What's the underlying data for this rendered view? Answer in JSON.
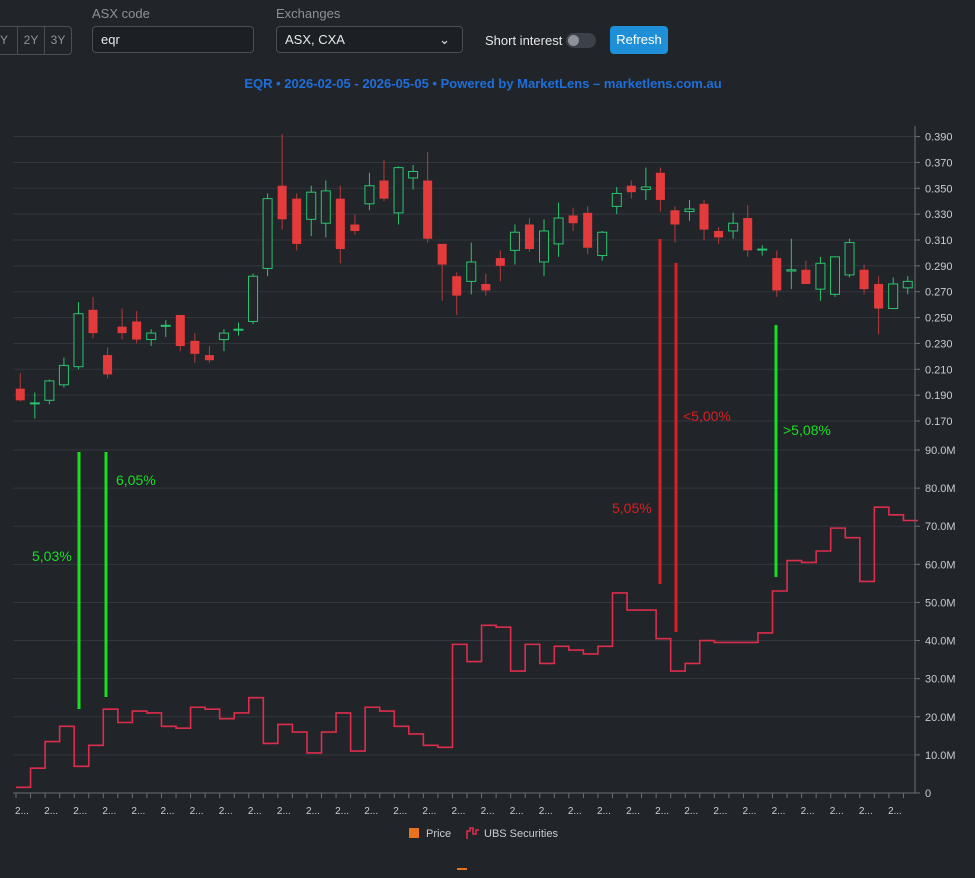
{
  "toolbar": {
    "range_buttons": [
      "Y",
      "2Y",
      "3Y"
    ],
    "asx_code_label": "ASX code",
    "asx_code_value": "eqr",
    "exchanges_label": "Exchanges",
    "exchanges_value": "ASX, CXA",
    "short_interest_label": "Short interest",
    "short_interest_on": false,
    "refresh_label": "Refresh",
    "accent": "#1f8fd8"
  },
  "chart_data": {
    "type": "candlestick+line",
    "title": "EQR • 2026-02-05 - 2026-05-05 • Powered by MarketLens – marketlens.com.au",
    "legend_position": "bottom",
    "legend": [
      {
        "name": "Price",
        "color": "#e8731c"
      },
      {
        "name": "UBS Securities",
        "color": "#dc2d4b"
      }
    ],
    "price_axis": {
      "ticks": [
        "0.390",
        "0.370",
        "0.350",
        "0.330",
        "0.310",
        "0.290",
        "0.270",
        "0.250",
        "0.230",
        "0.210",
        "0.190",
        "0.170"
      ],
      "ylim": [
        0.17,
        0.392
      ]
    },
    "volume_axis": {
      "ticks": [
        "90.0M",
        "80.0M",
        "70.0M",
        "60.0M",
        "50.0M",
        "40.0M",
        "30.0M",
        "20.0M",
        "10.0M",
        "0"
      ],
      "ylim": [
        0,
        90000000
      ]
    },
    "x_tick_label": "2...",
    "candles": [
      {
        "o": 0.195,
        "h": 0.207,
        "l": 0.185,
        "c": 0.186
      },
      {
        "o": 0.184,
        "h": 0.192,
        "l": 0.172,
        "c": 0.184
      },
      {
        "o": 0.186,
        "h": 0.202,
        "l": 0.183,
        "c": 0.201
      },
      {
        "o": 0.198,
        "h": 0.219,
        "l": 0.196,
        "c": 0.213
      },
      {
        "o": 0.212,
        "h": 0.262,
        "l": 0.21,
        "c": 0.253
      },
      {
        "o": 0.256,
        "h": 0.266,
        "l": 0.234,
        "c": 0.238
      },
      {
        "o": 0.221,
        "h": 0.227,
        "l": 0.203,
        "c": 0.206
      },
      {
        "o": 0.243,
        "h": 0.257,
        "l": 0.233,
        "c": 0.238
      },
      {
        "o": 0.247,
        "h": 0.255,
        "l": 0.23,
        "c": 0.233
      },
      {
        "o": 0.233,
        "h": 0.241,
        "l": 0.228,
        "c": 0.238
      },
      {
        "o": 0.244,
        "h": 0.248,
        "l": 0.235,
        "c": 0.244
      },
      {
        "o": 0.252,
        "h": 0.252,
        "l": 0.224,
        "c": 0.228
      },
      {
        "o": 0.232,
        "h": 0.238,
        "l": 0.215,
        "c": 0.222
      },
      {
        "o": 0.221,
        "h": 0.228,
        "l": 0.215,
        "c": 0.217
      },
      {
        "o": 0.233,
        "h": 0.241,
        "l": 0.224,
        "c": 0.238
      },
      {
        "o": 0.241,
        "h": 0.246,
        "l": 0.236,
        "c": 0.241
      },
      {
        "o": 0.247,
        "h": 0.284,
        "l": 0.245,
        "c": 0.282
      },
      {
        "o": 0.288,
        "h": 0.346,
        "l": 0.282,
        "c": 0.342
      },
      {
        "o": 0.352,
        "h": 0.392,
        "l": 0.318,
        "c": 0.326
      },
      {
        "o": 0.342,
        "h": 0.346,
        "l": 0.302,
        "c": 0.307
      },
      {
        "o": 0.326,
        "h": 0.352,
        "l": 0.313,
        "c": 0.347
      },
      {
        "o": 0.323,
        "h": 0.356,
        "l": 0.312,
        "c": 0.348
      },
      {
        "o": 0.342,
        "h": 0.352,
        "l": 0.292,
        "c": 0.303
      },
      {
        "o": 0.322,
        "h": 0.33,
        "l": 0.314,
        "c": 0.317
      },
      {
        "o": 0.338,
        "h": 0.362,
        "l": 0.333,
        "c": 0.352
      },
      {
        "o": 0.356,
        "h": 0.372,
        "l": 0.34,
        "c": 0.342
      },
      {
        "o": 0.331,
        "h": 0.367,
        "l": 0.322,
        "c": 0.366
      },
      {
        "o": 0.358,
        "h": 0.368,
        "l": 0.349,
        "c": 0.363
      },
      {
        "o": 0.356,
        "h": 0.378,
        "l": 0.308,
        "c": 0.311
      },
      {
        "o": 0.307,
        "h": 0.307,
        "l": 0.263,
        "c": 0.291
      },
      {
        "o": 0.282,
        "h": 0.285,
        "l": 0.252,
        "c": 0.267
      },
      {
        "o": 0.278,
        "h": 0.308,
        "l": 0.268,
        "c": 0.293
      },
      {
        "o": 0.276,
        "h": 0.284,
        "l": 0.267,
        "c": 0.271
      },
      {
        "o": 0.296,
        "h": 0.302,
        "l": 0.278,
        "c": 0.29
      },
      {
        "o": 0.302,
        "h": 0.322,
        "l": 0.291,
        "c": 0.316
      },
      {
        "o": 0.322,
        "h": 0.327,
        "l": 0.301,
        "c": 0.303
      },
      {
        "o": 0.293,
        "h": 0.326,
        "l": 0.282,
        "c": 0.317
      },
      {
        "o": 0.307,
        "h": 0.339,
        "l": 0.297,
        "c": 0.327
      },
      {
        "o": 0.329,
        "h": 0.335,
        "l": 0.317,
        "c": 0.323
      },
      {
        "o": 0.331,
        "h": 0.336,
        "l": 0.299,
        "c": 0.304
      },
      {
        "o": 0.298,
        "h": 0.317,
        "l": 0.294,
        "c": 0.316
      },
      {
        "o": 0.336,
        "h": 0.351,
        "l": 0.33,
        "c": 0.346
      },
      {
        "o": 0.352,
        "h": 0.356,
        "l": 0.342,
        "c": 0.347
      },
      {
        "o": 0.349,
        "h": 0.366,
        "l": 0.341,
        "c": 0.351
      },
      {
        "o": 0.362,
        "h": 0.366,
        "l": 0.332,
        "c": 0.341
      },
      {
        "o": 0.333,
        "h": 0.336,
        "l": 0.308,
        "c": 0.322
      },
      {
        "o": 0.332,
        "h": 0.341,
        "l": 0.325,
        "c": 0.334
      },
      {
        "o": 0.338,
        "h": 0.341,
        "l": 0.31,
        "c": 0.318
      },
      {
        "o": 0.317,
        "h": 0.32,
        "l": 0.307,
        "c": 0.312
      },
      {
        "o": 0.317,
        "h": 0.331,
        "l": 0.311,
        "c": 0.323
      },
      {
        "o": 0.327,
        "h": 0.337,
        "l": 0.297,
        "c": 0.302
      },
      {
        "o": 0.303,
        "h": 0.306,
        "l": 0.298,
        "c": 0.303
      },
      {
        "o": 0.296,
        "h": 0.302,
        "l": 0.266,
        "c": 0.271
      },
      {
        "o": 0.286,
        "h": 0.311,
        "l": 0.272,
        "c": 0.287
      },
      {
        "o": 0.287,
        "h": 0.294,
        "l": 0.276,
        "c": 0.276
      },
      {
        "o": 0.272,
        "h": 0.297,
        "l": 0.263,
        "c": 0.292
      },
      {
        "o": 0.268,
        "h": 0.297,
        "l": 0.266,
        "c": 0.297
      },
      {
        "o": 0.283,
        "h": 0.311,
        "l": 0.281,
        "c": 0.308
      },
      {
        "o": 0.287,
        "h": 0.291,
        "l": 0.268,
        "c": 0.272
      },
      {
        "o": 0.276,
        "h": 0.282,
        "l": 0.237,
        "c": 0.257
      },
      {
        "o": 0.257,
        "h": 0.281,
        "l": 0.257,
        "c": 0.276
      },
      {
        "o": 0.273,
        "h": 0.282,
        "l": 0.268,
        "c": 0.278
      }
    ],
    "ubs_holding": [
      1.5,
      6.5,
      13.5,
      17.5,
      7,
      12.5,
      22,
      18.5,
      21.5,
      21,
      17.5,
      17,
      22.5,
      22,
      19.5,
      21,
      25,
      13,
      18,
      16,
      10.5,
      16,
      21,
      11,
      22.5,
      21.5,
      17.5,
      15.5,
      12.5,
      12,
      39,
      34.5,
      44,
      43.5,
      32,
      39,
      34,
      38.5,
      37.5,
      36.5,
      38.5,
      52.5,
      48,
      48,
      40.5,
      32,
      34,
      40,
      39.5,
      39.5,
      39.5,
      42,
      53,
      61,
      60.5,
      63.5,
      69.5,
      67,
      55.5,
      75,
      73,
      71.5
    ],
    "annotations": [
      {
        "text": "5,03%",
        "color": "#16e020"
      },
      {
        "text": "6,05%",
        "color": "#16e020"
      },
      {
        "text": "5,05%",
        "color": "#dc1f1f"
      },
      {
        "text": "<5,00%",
        "color": "#dc1f1f"
      },
      {
        "text": ">5,08%",
        "color": "#16e020"
      }
    ]
  }
}
